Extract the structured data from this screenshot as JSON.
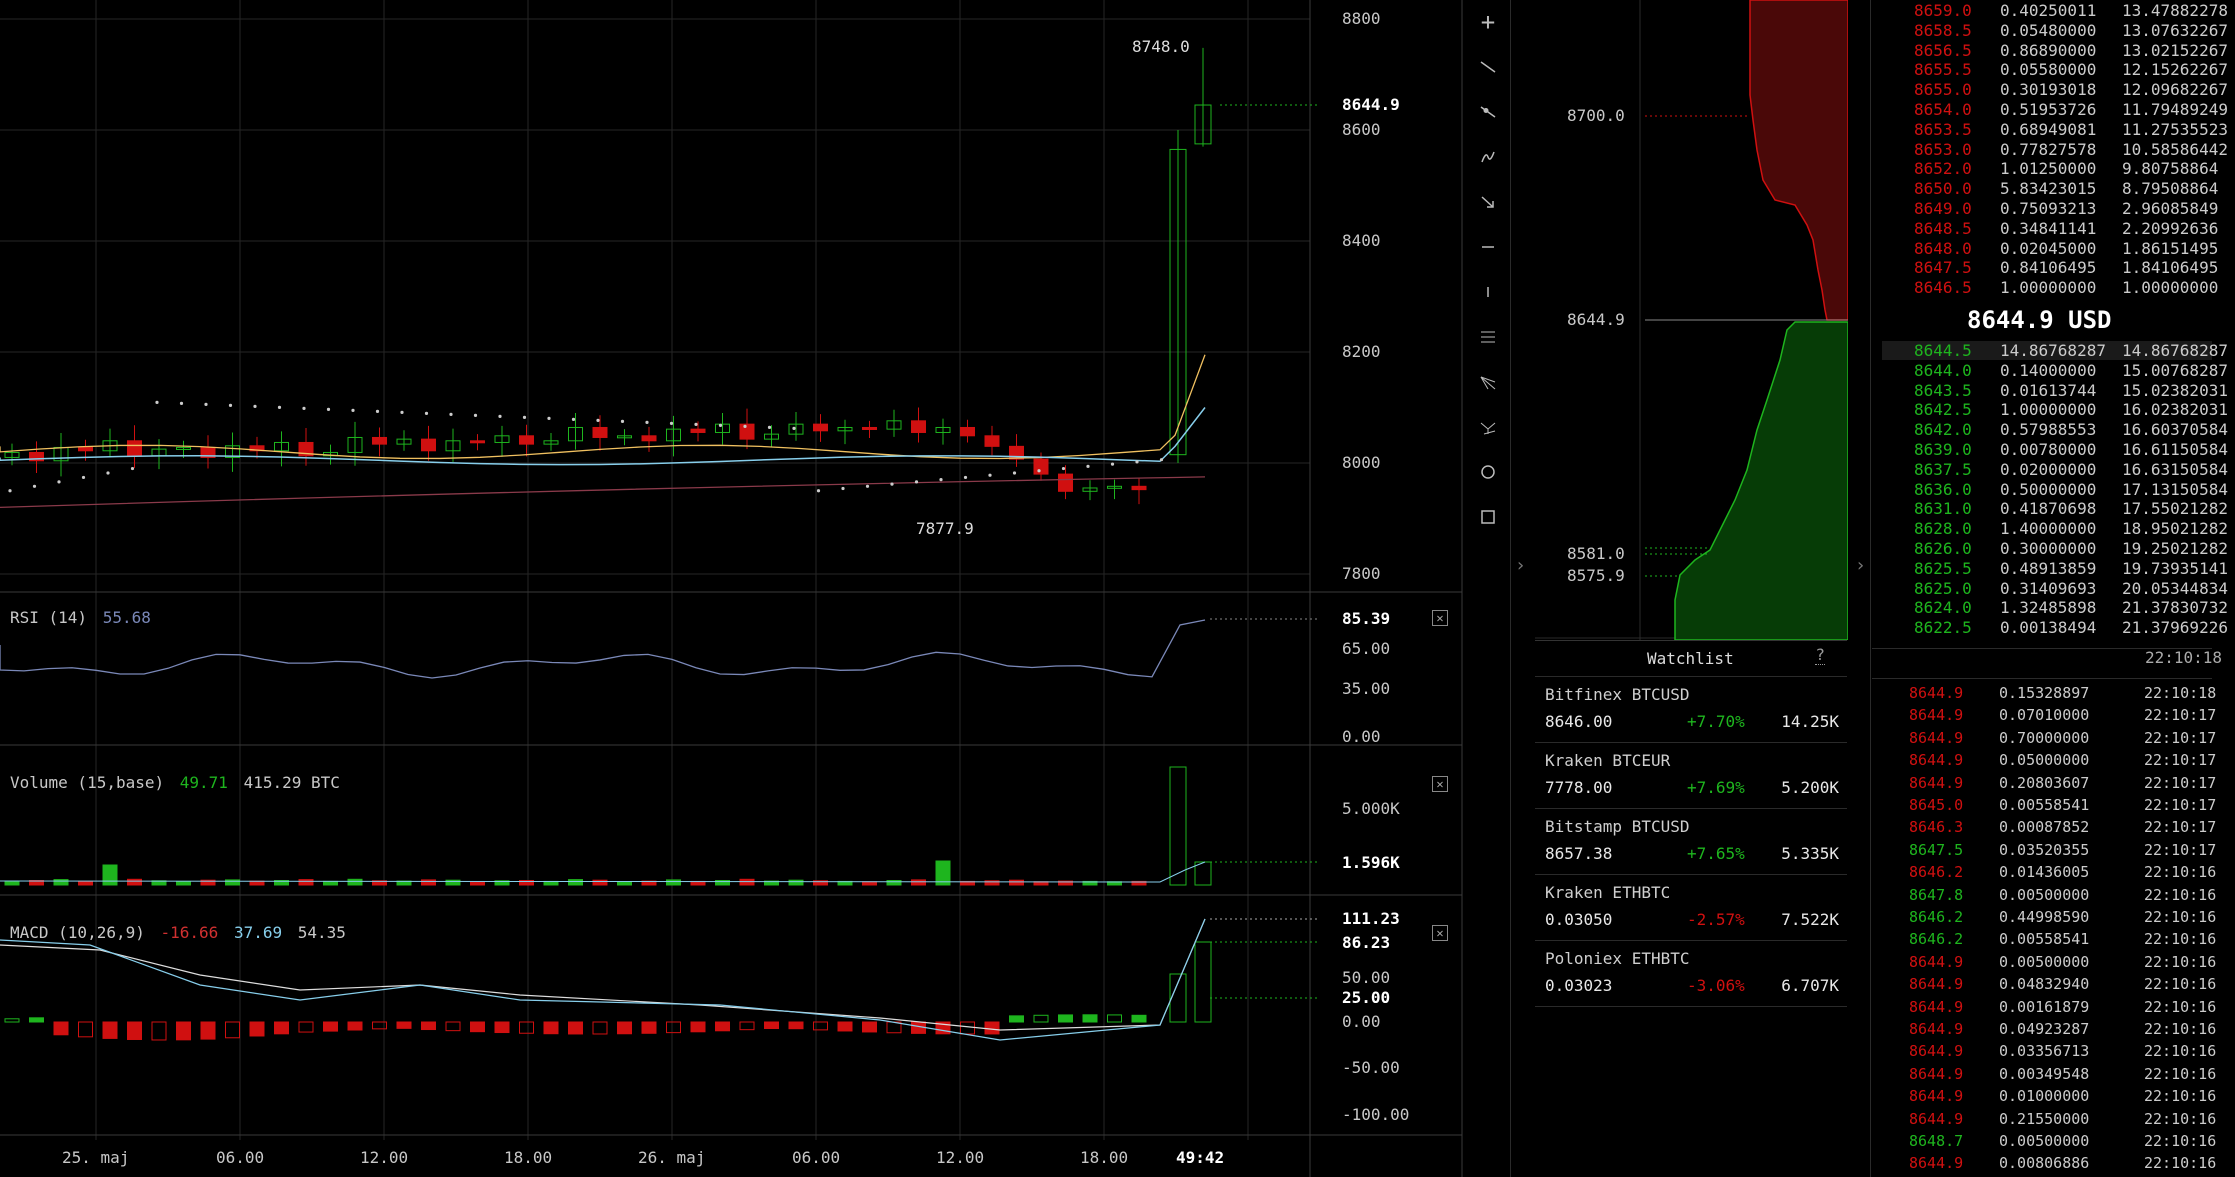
{
  "colors": {
    "up": "#1eb51e",
    "down": "#d01010",
    "ma_fast": "#f0c060",
    "ma_slow": "#87ceeb",
    "ma_long": "#8a3a4a",
    "rsi": "#7a88b8"
  },
  "price_axis": [
    "8800",
    "8600",
    "8400",
    "8200",
    "8000",
    "7800"
  ],
  "price_labels": {
    "last": "8644.9",
    "high": "8748.0",
    "low": "7877.9"
  },
  "rsi": {
    "label": "RSI (14)",
    "value": "55.68",
    "last": "85.39",
    "axis": [
      "65.00",
      "35.00",
      "0.00"
    ]
  },
  "volume": {
    "label": "Volume (15,base)",
    "v1": "49.71",
    "v2": "415.29 BTC",
    "axis": [
      "5.000K",
      "1.596K"
    ]
  },
  "macd": {
    "label": "MACD (10,26,9)",
    "v1": "-16.66",
    "v2": "37.69",
    "v3": "54.35",
    "axis": [
      "111.23",
      "86.23",
      "50.00",
      "25.00",
      "0.00",
      "-50.00",
      "-100.00"
    ]
  },
  "time_axis": [
    "25. maj",
    "06.00",
    "12.00",
    "18.00",
    "26. maj",
    "06.00",
    "12.00",
    "18.00",
    "49:42"
  ],
  "toolbar_icons": [
    "plus-icon",
    "trend-line-icon",
    "ray-icon",
    "curve-icon",
    "arrow-icon",
    "horizontal-line-icon",
    "vertical-line-icon",
    "parallel-lines-icon",
    "fib-fan-icon",
    "pitchfork-icon",
    "circle-icon",
    "rectangle-icon"
  ],
  "depth": {
    "levels": [
      "8700.0",
      "8644.9",
      "8581.0",
      "8575.9"
    ]
  },
  "orderbook": {
    "asks": [
      [
        "8659.0",
        "0.40250011",
        "13.47882278"
      ],
      [
        "8658.5",
        "0.05480000",
        "13.07632267"
      ],
      [
        "8656.5",
        "0.86890000",
        "13.02152267"
      ],
      [
        "8655.5",
        "0.05580000",
        "12.15262267"
      ],
      [
        "8655.0",
        "0.30193018",
        "12.09682267"
      ],
      [
        "8654.0",
        "0.51953726",
        "11.79489249"
      ],
      [
        "8653.5",
        "0.68949081",
        "11.27535523"
      ],
      [
        "8653.0",
        "0.77827578",
        "10.58586442"
      ],
      [
        "8652.0",
        "1.01250000",
        "9.80758864"
      ],
      [
        "8650.0",
        "5.83423015",
        "8.79508864"
      ],
      [
        "8649.0",
        "0.75093213",
        "2.96085849"
      ],
      [
        "8648.5",
        "0.34841141",
        "2.20992636"
      ],
      [
        "8648.0",
        "0.02045000",
        "1.86151495"
      ],
      [
        "8647.5",
        "0.84106495",
        "1.84106495"
      ],
      [
        "8646.5",
        "1.00000000",
        "1.00000000"
      ]
    ],
    "mid": "8644.9 USD",
    "bids": [
      [
        "8644.5",
        "14.86768287",
        "14.86768287"
      ],
      [
        "8644.0",
        "0.14000000",
        "15.00768287"
      ],
      [
        "8643.5",
        "0.01613744",
        "15.02382031"
      ],
      [
        "8642.5",
        "1.00000000",
        "16.02382031"
      ],
      [
        "8642.0",
        "0.57988553",
        "16.60370584"
      ],
      [
        "8639.0",
        "0.00780000",
        "16.61150584"
      ],
      [
        "8637.5",
        "0.02000000",
        "16.63150584"
      ],
      [
        "8636.0",
        "0.50000000",
        "17.13150584"
      ],
      [
        "8631.0",
        "0.41870698",
        "17.55021282"
      ],
      [
        "8628.0",
        "1.40000000",
        "18.95021282"
      ],
      [
        "8626.0",
        "0.30000000",
        "19.25021282"
      ],
      [
        "8625.5",
        "0.48913859",
        "19.73935141"
      ],
      [
        "8625.0",
        "0.31409693",
        "20.05344834"
      ],
      [
        "8624.0",
        "1.32485898",
        "21.37830732"
      ],
      [
        "8622.5",
        "0.00138494",
        "21.37969226"
      ]
    ],
    "time": "22:10:18"
  },
  "watchlist": {
    "title": "Watchlist",
    "help": "?",
    "items": [
      {
        "name": "Bitfinex BTCUSD",
        "price": "8646.00",
        "change": "+7.70%",
        "volume": "14.25K",
        "dir": "up"
      },
      {
        "name": "Kraken BTCEUR",
        "price": "7778.00",
        "change": "+7.69%",
        "volume": "5.200K",
        "dir": "up"
      },
      {
        "name": "Bitstamp BTCUSD",
        "price": "8657.38",
        "change": "+7.65%",
        "volume": "5.335K",
        "dir": "up"
      },
      {
        "name": "Kraken ETHBTC",
        "price": "0.03050",
        "change": "-2.57%",
        "volume": "7.522K",
        "dir": "down"
      },
      {
        "name": "Poloniex ETHBTC",
        "price": "0.03023",
        "change": "-3.06%",
        "volume": "6.707K",
        "dir": "down"
      }
    ]
  },
  "trades": [
    [
      "8644.9",
      "0.15328897",
      "22:10:18",
      "down"
    ],
    [
      "8644.9",
      "0.07010000",
      "22:10:17",
      "down"
    ],
    [
      "8644.9",
      "0.70000000",
      "22:10:17",
      "down"
    ],
    [
      "8644.9",
      "0.05000000",
      "22:10:17",
      "down"
    ],
    [
      "8644.9",
      "0.20803607",
      "22:10:17",
      "down"
    ],
    [
      "8645.0",
      "0.00558541",
      "22:10:17",
      "down"
    ],
    [
      "8646.3",
      "0.00087852",
      "22:10:17",
      "down"
    ],
    [
      "8647.5",
      "0.03520355",
      "22:10:17",
      "up"
    ],
    [
      "8646.2",
      "0.01436005",
      "22:10:16",
      "down"
    ],
    [
      "8647.8",
      "0.00500000",
      "22:10:16",
      "up"
    ],
    [
      "8646.2",
      "0.44998590",
      "22:10:16",
      "up"
    ],
    [
      "8646.2",
      "0.00558541",
      "22:10:16",
      "up"
    ],
    [
      "8644.9",
      "0.00500000",
      "22:10:16",
      "down"
    ],
    [
      "8644.9",
      "0.04832940",
      "22:10:16",
      "down"
    ],
    [
      "8644.9",
      "0.00161879",
      "22:10:16",
      "down"
    ],
    [
      "8644.9",
      "0.04923287",
      "22:10:16",
      "down"
    ],
    [
      "8644.9",
      "0.03356713",
      "22:10:16",
      "down"
    ],
    [
      "8644.9",
      "0.00349548",
      "22:10:16",
      "down"
    ],
    [
      "8644.9",
      "0.01000000",
      "22:10:16",
      "down"
    ],
    [
      "8644.9",
      "0.21550000",
      "22:10:16",
      "down"
    ],
    [
      "8648.7",
      "0.00500000",
      "22:10:16",
      "up"
    ],
    [
      "8644.9",
      "0.00806886",
      "22:10:16",
      "down"
    ]
  ]
}
